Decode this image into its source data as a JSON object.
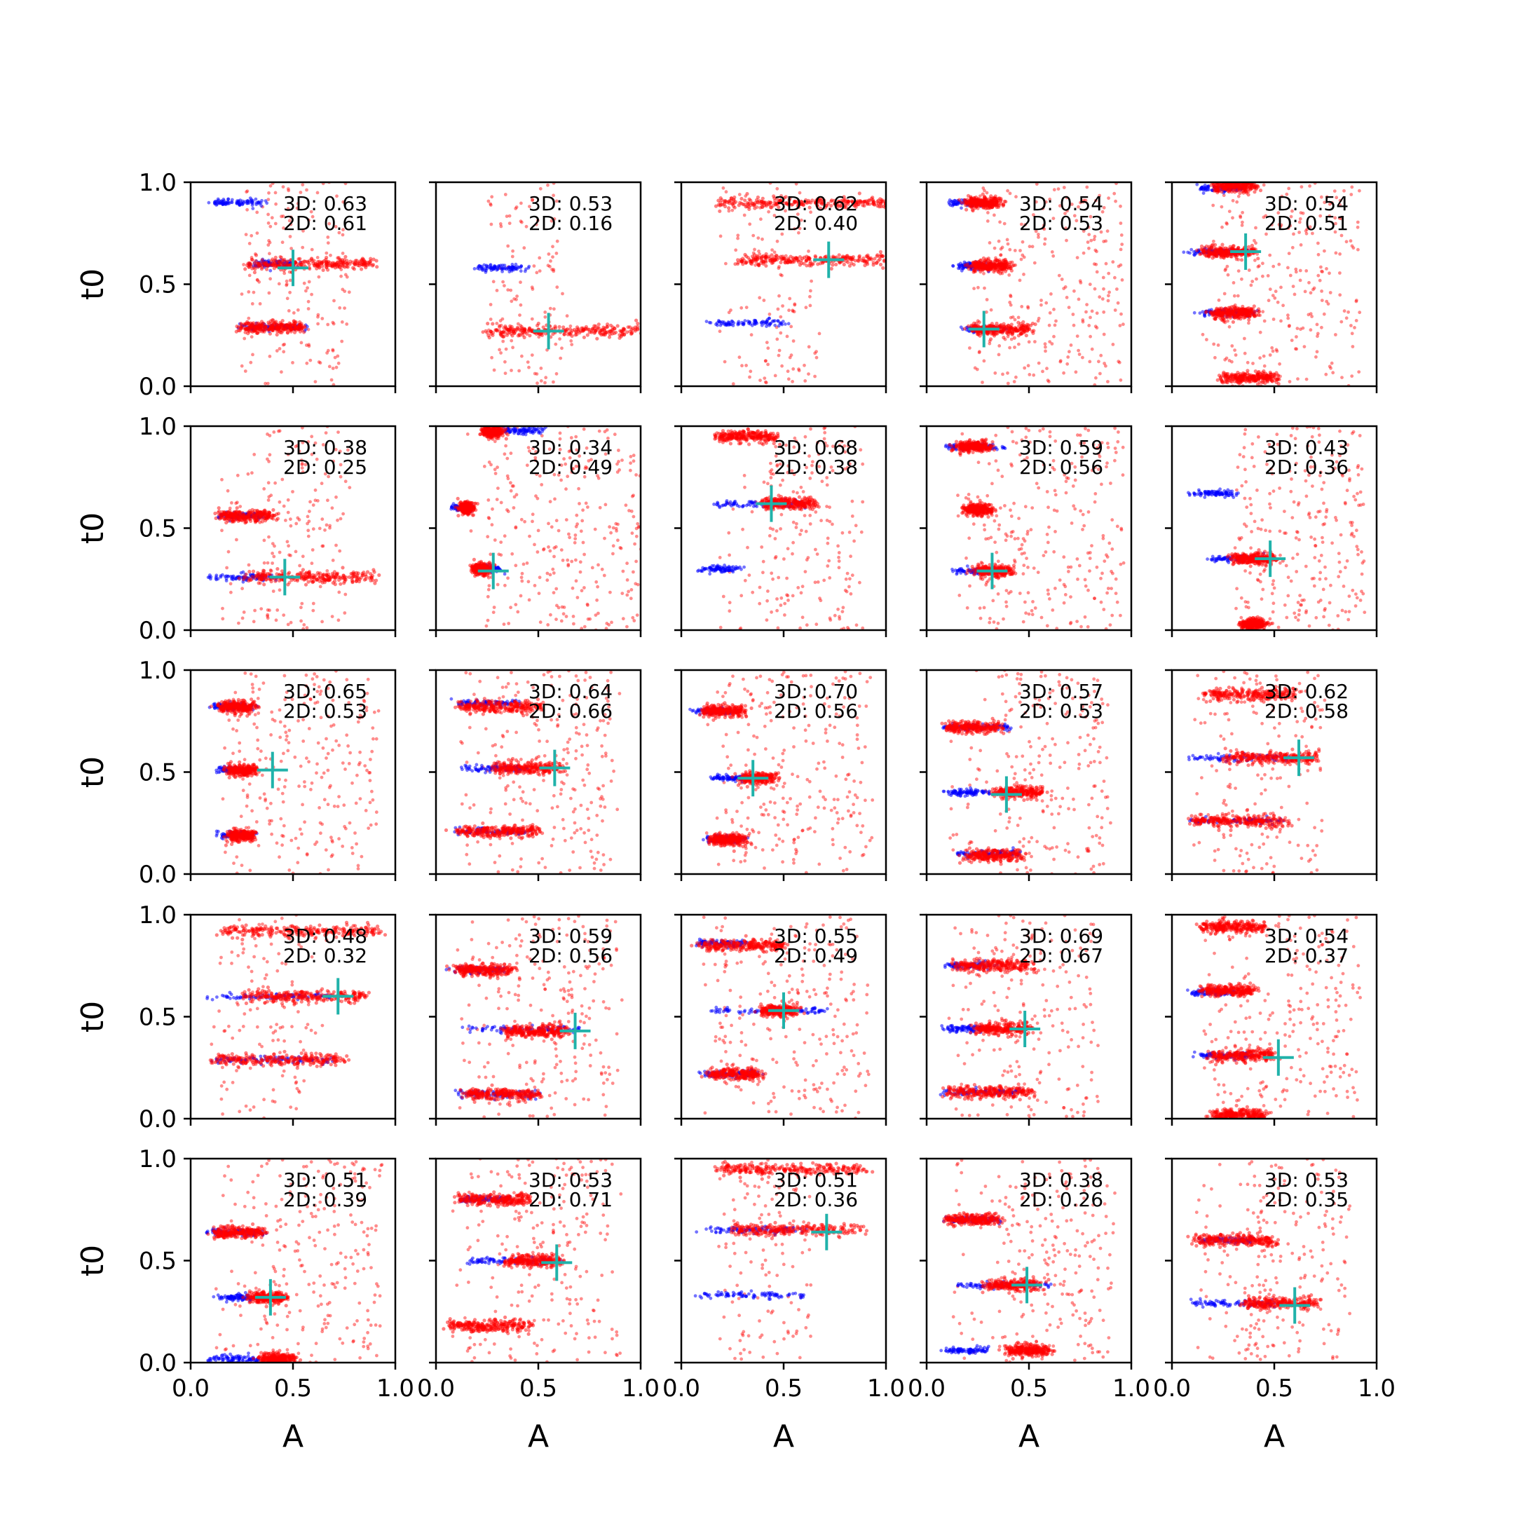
{
  "chart_data": {
    "type": "scatter",
    "grid": {
      "rows": 5,
      "cols": 5
    },
    "xlabel": "A",
    "ylabel": "t0",
    "xlim": [
      0,
      1
    ],
    "ylim": [
      0,
      1
    ],
    "x_ticks": [
      "0.0",
      "0.5",
      "1.0"
    ],
    "y_ticks": [
      "0.0",
      "0.5",
      "1.0"
    ],
    "grid_lines": false,
    "colors": {
      "samples_3d": "#ff0000",
      "samples_2d": "#0000ff",
      "truth_marker": "#20b2aa"
    },
    "panels": [
      {
        "label_3d": "3D: 0.63",
        "label_2d": "2D: 0.61",
        "truth": [
          0.5,
          0.58
        ],
        "red_bands": [
          [
            0.28,
            0.6,
            0.9
          ],
          [
            0.25,
            0.29,
            0.55
          ]
        ],
        "blue_bands": [
          [
            0.3,
            0.6,
            0.5
          ],
          [
            0.25,
            0.29,
            0.55
          ],
          [
            0.1,
            0.9,
            0.35
          ]
        ],
        "scatter": 0.25
      },
      {
        "label_3d": "3D: 0.53",
        "label_2d": "2D: 0.16",
        "truth": [
          0.55,
          0.27
        ],
        "red_bands": [
          [
            0.25,
            0.27,
            1.0
          ]
        ],
        "blue_bands": [
          [
            0.2,
            0.58,
            0.45
          ]
        ],
        "scatter": 0.12
      },
      {
        "label_3d": "3D: 0.62",
        "label_2d": "2D: 0.40",
        "truth": [
          0.72,
          0.62
        ],
        "red_bands": [
          [
            0.28,
            0.62,
            1.0
          ],
          [
            0.18,
            0.9,
            1.0
          ]
        ],
        "blue_bands": [
          [
            0.15,
            0.31,
            0.5
          ]
        ],
        "scatter": 0.12
      },
      {
        "label_3d": "3D: 0.54",
        "label_2d": "2D: 0.53",
        "truth": [
          0.28,
          0.28
        ],
        "red_bands": [
          [
            0.22,
            0.28,
            0.5
          ],
          [
            0.22,
            0.59,
            0.4
          ],
          [
            0.2,
            0.9,
            0.35
          ]
        ],
        "blue_bands": [
          [
            0.2,
            0.28,
            0.35
          ],
          [
            0.15,
            0.59,
            0.3
          ],
          [
            0.12,
            0.9,
            0.3
          ]
        ],
        "scatter": 0.5
      },
      {
        "label_3d": "3D: 0.54",
        "label_2d": "2D: 0.51",
        "truth": [
          0.36,
          0.66
        ],
        "red_bands": [
          [
            0.15,
            0.66,
            0.4
          ],
          [
            0.2,
            0.36,
            0.4
          ],
          [
            0.25,
            0.04,
            0.5
          ],
          [
            0.2,
            0.98,
            0.4
          ]
        ],
        "blue_bands": [
          [
            0.15,
            0.36,
            0.4
          ],
          [
            0.1,
            0.66,
            0.35
          ],
          [
            0.15,
            0.97,
            0.35
          ]
        ],
        "scatter": 0.45
      },
      {
        "label_3d": "3D: 0.38",
        "label_2d": "2D: 0.25",
        "truth": [
          0.46,
          0.26
        ],
        "red_bands": [
          [
            0.28,
            0.26,
            0.9
          ],
          [
            0.15,
            0.56,
            0.4
          ]
        ],
        "blue_bands": [
          [
            0.15,
            0.56,
            0.35
          ],
          [
            0.1,
            0.26,
            0.4
          ]
        ],
        "scatter": 0.25
      },
      {
        "label_3d": "3D: 0.34",
        "label_2d": "2D: 0.49",
        "truth": [
          0.28,
          0.29
        ],
        "red_bands": [
          [
            0.25,
            0.3,
            0.2
          ],
          [
            0.25,
            0.97,
            0.3
          ],
          [
            0.15,
            0.6,
            0.15
          ]
        ],
        "blue_bands": [
          [
            0.22,
            0.3,
            0.3
          ],
          [
            0.35,
            0.98,
            0.5
          ],
          [
            0.1,
            0.6,
            0.15
          ]
        ],
        "scatter": 0.6
      },
      {
        "label_3d": "3D: 0.68",
        "label_2d": "2D: 0.38",
        "truth": [
          0.44,
          0.62
        ],
        "red_bands": [
          [
            0.4,
            0.62,
            0.65
          ],
          [
            0.18,
            0.95,
            0.45
          ]
        ],
        "blue_bands": [
          [
            0.1,
            0.3,
            0.28
          ],
          [
            0.15,
            0.62,
            0.6
          ]
        ],
        "scatter": 0.35
      },
      {
        "label_3d": "3D: 0.59",
        "label_2d": "2D: 0.56",
        "truth": [
          0.32,
          0.29
        ],
        "red_bands": [
          [
            0.25,
            0.29,
            0.4
          ],
          [
            0.2,
            0.59,
            0.3
          ],
          [
            0.15,
            0.9,
            0.3
          ]
        ],
        "blue_bands": [
          [
            0.15,
            0.29,
            0.35
          ],
          [
            0.1,
            0.9,
            0.35
          ]
        ],
        "scatter": 0.5
      },
      {
        "label_3d": "3D: 0.43",
        "label_2d": "2D: 0.36",
        "truth": [
          0.48,
          0.35
        ],
        "red_bands": [
          [
            0.3,
            0.35,
            0.5
          ],
          [
            0.35,
            0.03,
            0.45
          ]
        ],
        "blue_bands": [
          [
            0.1,
            0.67,
            0.3
          ],
          [
            0.2,
            0.35,
            0.45
          ]
        ],
        "scatter": 0.45
      },
      {
        "label_3d": "3D: 0.65",
        "label_2d": "2D: 0.53",
        "truth": [
          0.4,
          0.51
        ],
        "red_bands": [
          [
            0.2,
            0.51,
            0.3
          ],
          [
            0.2,
            0.19,
            0.3
          ],
          [
            0.15,
            0.82,
            0.3
          ]
        ],
        "blue_bands": [
          [
            0.15,
            0.51,
            0.25
          ],
          [
            0.15,
            0.19,
            0.3
          ],
          [
            0.1,
            0.82,
            0.3
          ]
        ],
        "scatter": 0.45
      },
      {
        "label_3d": "3D: 0.64",
        "label_2d": "2D: 0.66",
        "truth": [
          0.58,
          0.52
        ],
        "red_bands": [
          [
            0.3,
            0.52,
            0.6
          ],
          [
            0.12,
            0.82,
            0.5
          ],
          [
            0.12,
            0.21,
            0.5
          ]
        ],
        "blue_bands": [
          [
            0.15,
            0.52,
            0.45
          ],
          [
            0.1,
            0.84,
            0.4
          ],
          [
            0.1,
            0.21,
            0.45
          ]
        ],
        "scatter": 0.4
      },
      {
        "label_3d": "3D: 0.70",
        "label_2d": "2D: 0.56",
        "truth": [
          0.35,
          0.47
        ],
        "red_bands": [
          [
            0.3,
            0.47,
            0.45
          ],
          [
            0.15,
            0.17,
            0.3
          ],
          [
            0.12,
            0.8,
            0.3
          ]
        ],
        "blue_bands": [
          [
            0.15,
            0.47,
            0.35
          ],
          [
            0.12,
            0.17,
            0.3
          ],
          [
            0.08,
            0.8,
            0.25
          ]
        ],
        "scatter": 0.45
      },
      {
        "label_3d": "3D: 0.57",
        "label_2d": "2D: 0.53",
        "truth": [
          0.39,
          0.39
        ],
        "red_bands": [
          [
            0.35,
            0.4,
            0.55
          ],
          [
            0.2,
            0.09,
            0.45
          ],
          [
            0.1,
            0.72,
            0.35
          ]
        ],
        "blue_bands": [
          [
            0.1,
            0.72,
            0.4
          ],
          [
            0.15,
            0.1,
            0.45
          ],
          [
            0.1,
            0.4,
            0.3
          ]
        ],
        "scatter": 0.4
      },
      {
        "label_3d": "3D: 0.62",
        "label_2d": "2D: 0.58",
        "truth": [
          0.62,
          0.57
        ],
        "red_bands": [
          [
            0.25,
            0.57,
            0.7
          ],
          [
            0.15,
            0.88,
            0.6
          ],
          [
            0.1,
            0.26,
            0.55
          ]
        ],
        "blue_bands": [
          [
            0.1,
            0.57,
            0.6
          ],
          [
            0.1,
            0.26,
            0.55
          ]
        ],
        "scatter": 0.25
      },
      {
        "label_3d": "3D: 0.48",
        "label_2d": "2D: 0.32",
        "truth": [
          0.72,
          0.6
        ],
        "red_bands": [
          [
            0.25,
            0.6,
            0.87
          ],
          [
            0.15,
            0.92,
            0.92
          ],
          [
            0.1,
            0.29,
            0.75
          ]
        ],
        "blue_bands": [
          [
            0.1,
            0.6,
            0.68
          ],
          [
            0.1,
            0.29,
            0.7
          ]
        ],
        "scatter": 0.12
      },
      {
        "label_3d": "3D: 0.59",
        "label_2d": "2D: 0.56",
        "truth": [
          0.68,
          0.43
        ],
        "red_bands": [
          [
            0.35,
            0.43,
            0.62
          ],
          [
            0.15,
            0.12,
            0.5
          ],
          [
            0.1,
            0.73,
            0.38
          ]
        ],
        "blue_bands": [
          [
            0.1,
            0.73,
            0.33
          ],
          [
            0.15,
            0.44,
            0.7
          ],
          [
            0.1,
            0.12,
            0.5
          ]
        ],
        "scatter": 0.4
      },
      {
        "label_3d": "3D: 0.55",
        "label_2d": "2D: 0.49",
        "truth": [
          0.5,
          0.53
        ],
        "red_bands": [
          [
            0.4,
            0.53,
            0.55
          ],
          [
            0.15,
            0.22,
            0.38
          ],
          [
            0.1,
            0.85,
            0.5
          ]
        ],
        "blue_bands": [
          [
            0.15,
            0.53,
            0.7
          ],
          [
            0.1,
            0.22,
            0.38
          ],
          [
            0.08,
            0.86,
            0.3
          ]
        ],
        "scatter": 0.4
      },
      {
        "label_3d": "3D: 0.69",
        "label_2d": "2D: 0.67",
        "truth": [
          0.48,
          0.44
        ],
        "red_bands": [
          [
            0.25,
            0.44,
            0.5
          ],
          [
            0.15,
            0.75,
            0.5
          ],
          [
            0.1,
            0.13,
            0.5
          ]
        ],
        "blue_bands": [
          [
            0.1,
            0.44,
            0.3
          ],
          [
            0.1,
            0.75,
            0.3
          ],
          [
            0.08,
            0.13,
            0.45
          ]
        ],
        "scatter": 0.35
      },
      {
        "label_3d": "3D: 0.54",
        "label_2d": "2D: 0.37",
        "truth": [
          0.52,
          0.3
        ],
        "red_bands": [
          [
            0.2,
            0.31,
            0.5
          ],
          [
            0.2,
            0.02,
            0.45
          ],
          [
            0.15,
            0.63,
            0.4
          ],
          [
            0.15,
            0.94,
            0.45
          ]
        ],
        "blue_bands": [
          [
            0.1,
            0.62,
            0.3
          ],
          [
            0.15,
            0.31,
            0.4
          ]
        ],
        "scatter": 0.45
      },
      {
        "label_3d": "3D: 0.51",
        "label_2d": "2D: 0.39",
        "truth": [
          0.39,
          0.32
        ],
        "red_bands": [
          [
            0.3,
            0.32,
            0.45
          ],
          [
            0.35,
            0.02,
            0.5
          ],
          [
            0.12,
            0.64,
            0.35
          ]
        ],
        "blue_bands": [
          [
            0.15,
            0.32,
            0.3
          ],
          [
            0.1,
            0.64,
            0.35
          ],
          [
            0.1,
            0.02,
            0.35
          ]
        ],
        "scatter": 0.45
      },
      {
        "label_3d": "3D: 0.53",
        "label_2d": "2D: 0.71",
        "truth": [
          0.59,
          0.49
        ],
        "red_bands": [
          [
            0.35,
            0.5,
            0.6
          ],
          [
            0.12,
            0.8,
            0.45
          ],
          [
            0.08,
            0.18,
            0.45
          ]
        ],
        "blue_bands": [
          [
            0.15,
            0.5,
            0.6
          ],
          [
            0.12,
            0.8,
            0.35
          ]
        ],
        "scatter": 0.4
      },
      {
        "label_3d": "3D: 0.51",
        "label_2d": "2D: 0.36",
        "truth": [
          0.71,
          0.64
        ],
        "red_bands": [
          [
            0.25,
            0.65,
            0.88
          ],
          [
            0.18,
            0.95,
            0.88
          ]
        ],
        "blue_bands": [
          [
            0.1,
            0.65,
            0.6
          ],
          [
            0.08,
            0.33,
            0.6
          ]
        ],
        "scatter": 0.12
      },
      {
        "label_3d": "3D: 0.38",
        "label_2d": "2D: 0.26",
        "truth": [
          0.49,
          0.38
        ],
        "red_bands": [
          [
            0.3,
            0.38,
            0.55
          ],
          [
            0.4,
            0.06,
            0.6
          ],
          [
            0.1,
            0.7,
            0.35
          ]
        ],
        "blue_bands": [
          [
            0.1,
            0.7,
            0.35
          ],
          [
            0.15,
            0.38,
            0.6
          ],
          [
            0.1,
            0.06,
            0.3
          ]
        ],
        "scatter": 0.4
      },
      {
        "label_3d": "3D: 0.53",
        "label_2d": "2D: 0.35",
        "truth": [
          0.6,
          0.28
        ],
        "red_bands": [
          [
            0.35,
            0.29,
            0.7
          ],
          [
            0.12,
            0.6,
            0.5
          ]
        ],
        "blue_bands": [
          [
            0.15,
            0.6,
            0.4
          ],
          [
            0.1,
            0.29,
            0.5
          ]
        ],
        "scatter": 0.35
      }
    ]
  }
}
